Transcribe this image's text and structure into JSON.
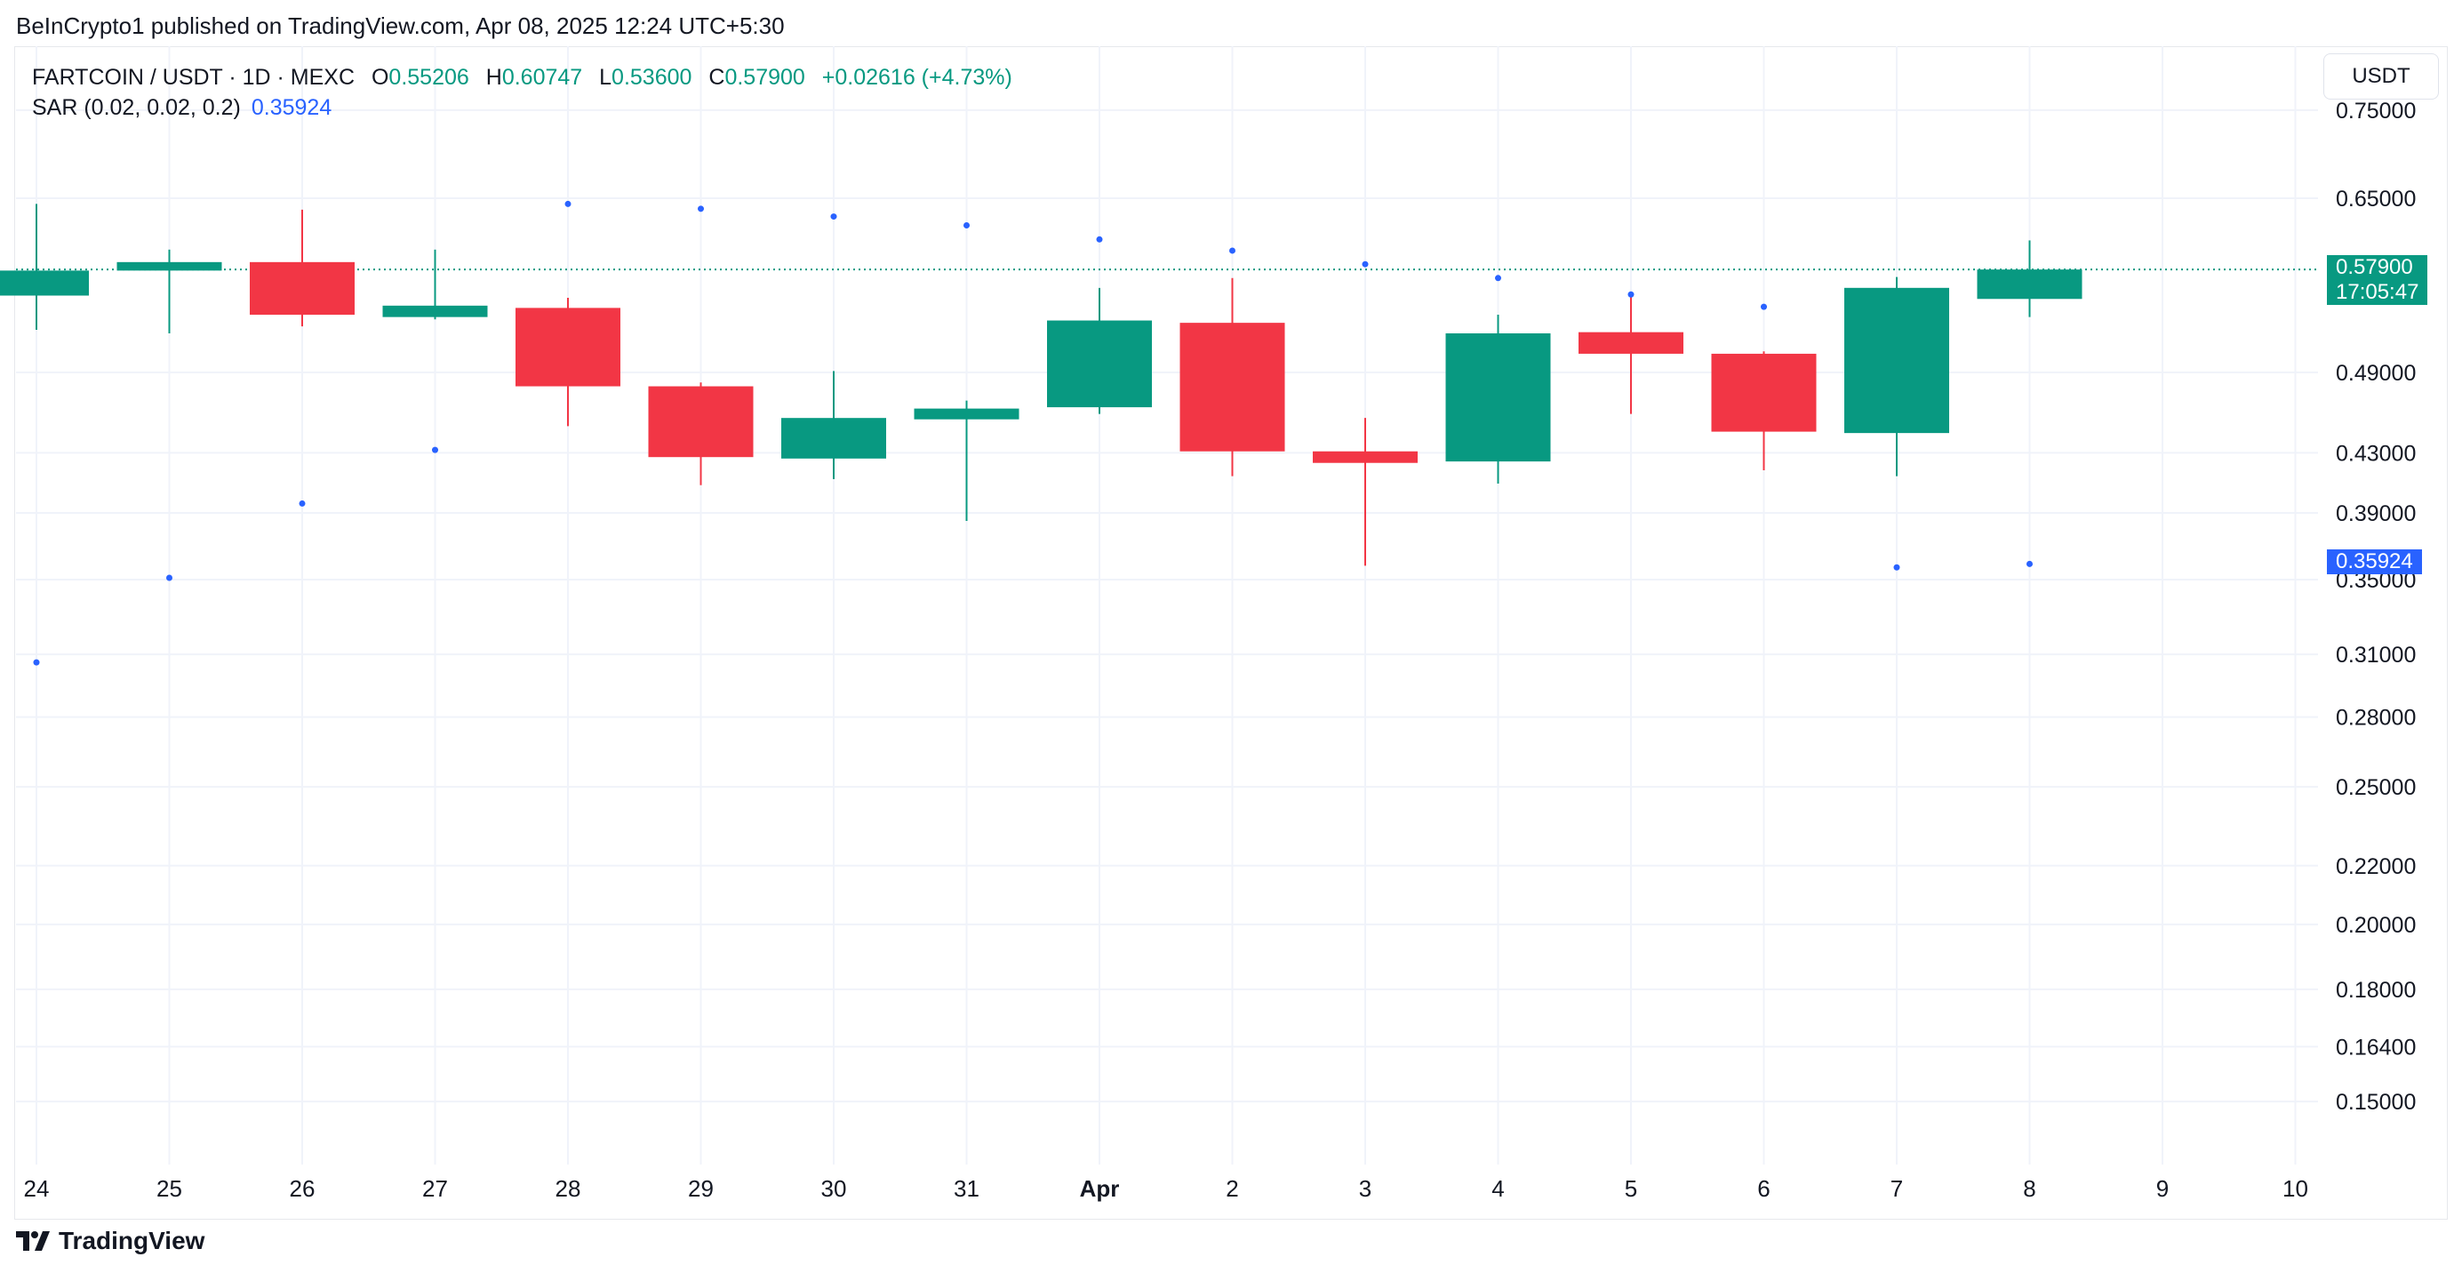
{
  "header": {
    "published": "BeInCrypto1 published on TradingView.com, Apr 08, 2025 12:24 UTC+5:30"
  },
  "legend": {
    "symbol": "FARTCOIN / USDT · 1D · MEXC",
    "o_label": "O",
    "o_value": "0.55206",
    "h_label": "H",
    "h_value": "0.60747",
    "l_label": "L",
    "l_value": "0.53600",
    "c_label": "C",
    "c_value": "0.57900",
    "change": "+0.02616 (+4.73%)",
    "sar_label": "SAR (0.02, 0.02, 0.2)",
    "sar_value": "0.35924"
  },
  "price_axis": {
    "unit": "USDT"
  },
  "footer": {
    "brand": "TradingView"
  },
  "colors": {
    "up": "#089981",
    "down": "#f23645",
    "sar": "#2962ff",
    "grid": "#f0f3fa",
    "text": "#131722"
  },
  "chart_data": {
    "type": "candlestick",
    "title": "FARTCOIN / USDT · 1D · MEXC",
    "scale": "log",
    "x_labels": [
      "24",
      "25",
      "26",
      "27",
      "28",
      "29",
      "30",
      "31",
      "Apr",
      "2",
      "3",
      "4",
      "5",
      "6",
      "7",
      "8",
      "9",
      "10"
    ],
    "y_ticks": [
      "0.75000",
      "0.65000",
      "0.49000",
      "0.43000",
      "0.39000",
      "0.35000",
      "0.31000",
      "0.28000",
      "0.25000",
      "0.22000",
      "0.20000",
      "0.18000",
      "0.16400",
      "0.15000"
    ],
    "ylim": [
      0.137,
      0.82
    ],
    "candles": [
      {
        "o": 0.555,
        "h": 0.644,
        "l": 0.525,
        "c": 0.578
      },
      {
        "o": 0.578,
        "h": 0.598,
        "l": 0.522,
        "c": 0.586
      },
      {
        "o": 0.586,
        "h": 0.638,
        "l": 0.528,
        "c": 0.538
      },
      {
        "o": 0.536,
        "h": 0.598,
        "l": 0.534,
        "c": 0.546
      },
      {
        "o": 0.544,
        "h": 0.553,
        "l": 0.449,
        "c": 0.479
      },
      {
        "o": 0.479,
        "h": 0.482,
        "l": 0.408,
        "c": 0.427
      },
      {
        "o": 0.426,
        "h": 0.491,
        "l": 0.412,
        "c": 0.455
      },
      {
        "o": 0.454,
        "h": 0.468,
        "l": 0.385,
        "c": 0.462
      },
      {
        "o": 0.463,
        "h": 0.562,
        "l": 0.458,
        "c": 0.533
      },
      {
        "o": 0.531,
        "h": 0.571,
        "l": 0.414,
        "c": 0.431
      },
      {
        "o": 0.431,
        "h": 0.455,
        "l": 0.358,
        "c": 0.423
      },
      {
        "o": 0.424,
        "h": 0.538,
        "l": 0.409,
        "c": 0.522
      },
      {
        "o": 0.523,
        "h": 0.556,
        "l": 0.458,
        "c": 0.505
      },
      {
        "o": 0.505,
        "h": 0.507,
        "l": 0.418,
        "c": 0.445
      },
      {
        "o": 0.444,
        "h": 0.572,
        "l": 0.414,
        "c": 0.562
      },
      {
        "o": 0.552,
        "h": 0.607,
        "l": 0.536,
        "c": 0.579
      }
    ],
    "sar": [
      0.306,
      0.351,
      0.396,
      0.432,
      0.644,
      0.639,
      0.631,
      0.622,
      0.608,
      0.597,
      0.584,
      0.571,
      0.556,
      0.545,
      0.357,
      0.359
    ],
    "last_price": "0.57900",
    "countdown": "17:05:47",
    "sar_last": "0.35924"
  }
}
